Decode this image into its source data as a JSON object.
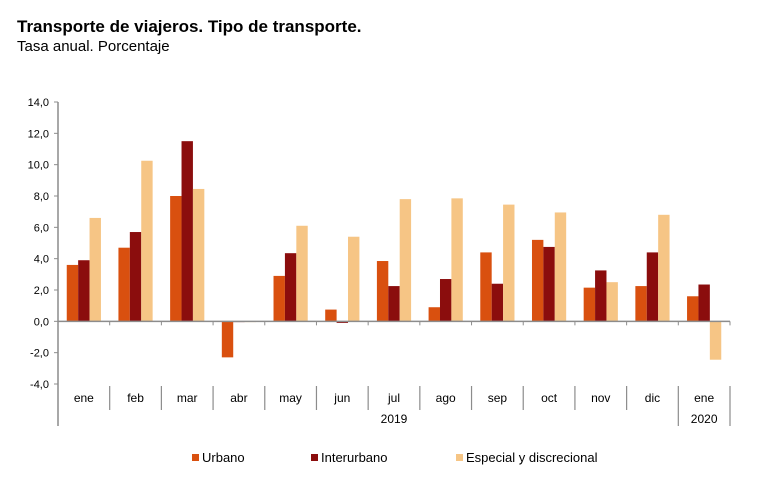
{
  "header": {
    "title": "Transporte de viajeros. Tipo de transporte.",
    "subtitle": "Tasa anual. Porcentaje"
  },
  "chart_data": {
    "type": "bar",
    "title": "Transporte de viajeros. Tipo de transporte.",
    "subtitle": "Tasa anual. Porcentaje",
    "xlabel": "",
    "ylabel": "",
    "ylim": [
      -4,
      14
    ],
    "yticks": [
      14,
      12,
      10,
      8,
      6,
      4,
      2,
      0,
      -2,
      -4
    ],
    "ytick_labels": [
      "14,0",
      "12,0",
      "10,0",
      "8,0",
      "6,0",
      "4,0",
      "2,0",
      "0,0",
      "-2,0",
      "-4,0"
    ],
    "categories": [
      "ene",
      "feb",
      "mar",
      "abr",
      "may",
      "jun",
      "jul",
      "ago",
      "sep",
      "oct",
      "nov",
      "dic",
      "ene"
    ],
    "year_groups": [
      {
        "label": "2019",
        "start": 0,
        "end": 11
      },
      {
        "label": "2020",
        "start": 12,
        "end": 12
      }
    ],
    "series": [
      {
        "name": "Urbano",
        "color": "#d9500f",
        "values": [
          3.6,
          4.7,
          8.0,
          -2.3,
          2.9,
          0.75,
          3.85,
          0.9,
          4.4,
          5.2,
          2.15,
          2.25,
          1.6
        ]
      },
      {
        "name": "Interurbano",
        "color": "#8b0d0d",
        "values": [
          3.9,
          5.7,
          11.5,
          -0.05,
          4.35,
          -0.1,
          2.25,
          2.7,
          2.4,
          4.75,
          3.25,
          4.4,
          2.35
        ]
      },
      {
        "name": "Especial y discrecional",
        "color": "#f6c585",
        "values": [
          6.6,
          10.25,
          8.45,
          -0.05,
          6.1,
          5.4,
          7.8,
          7.85,
          7.45,
          6.95,
          2.5,
          6.8,
          -2.45
        ]
      }
    ],
    "grid": false,
    "legend": "bottom"
  }
}
